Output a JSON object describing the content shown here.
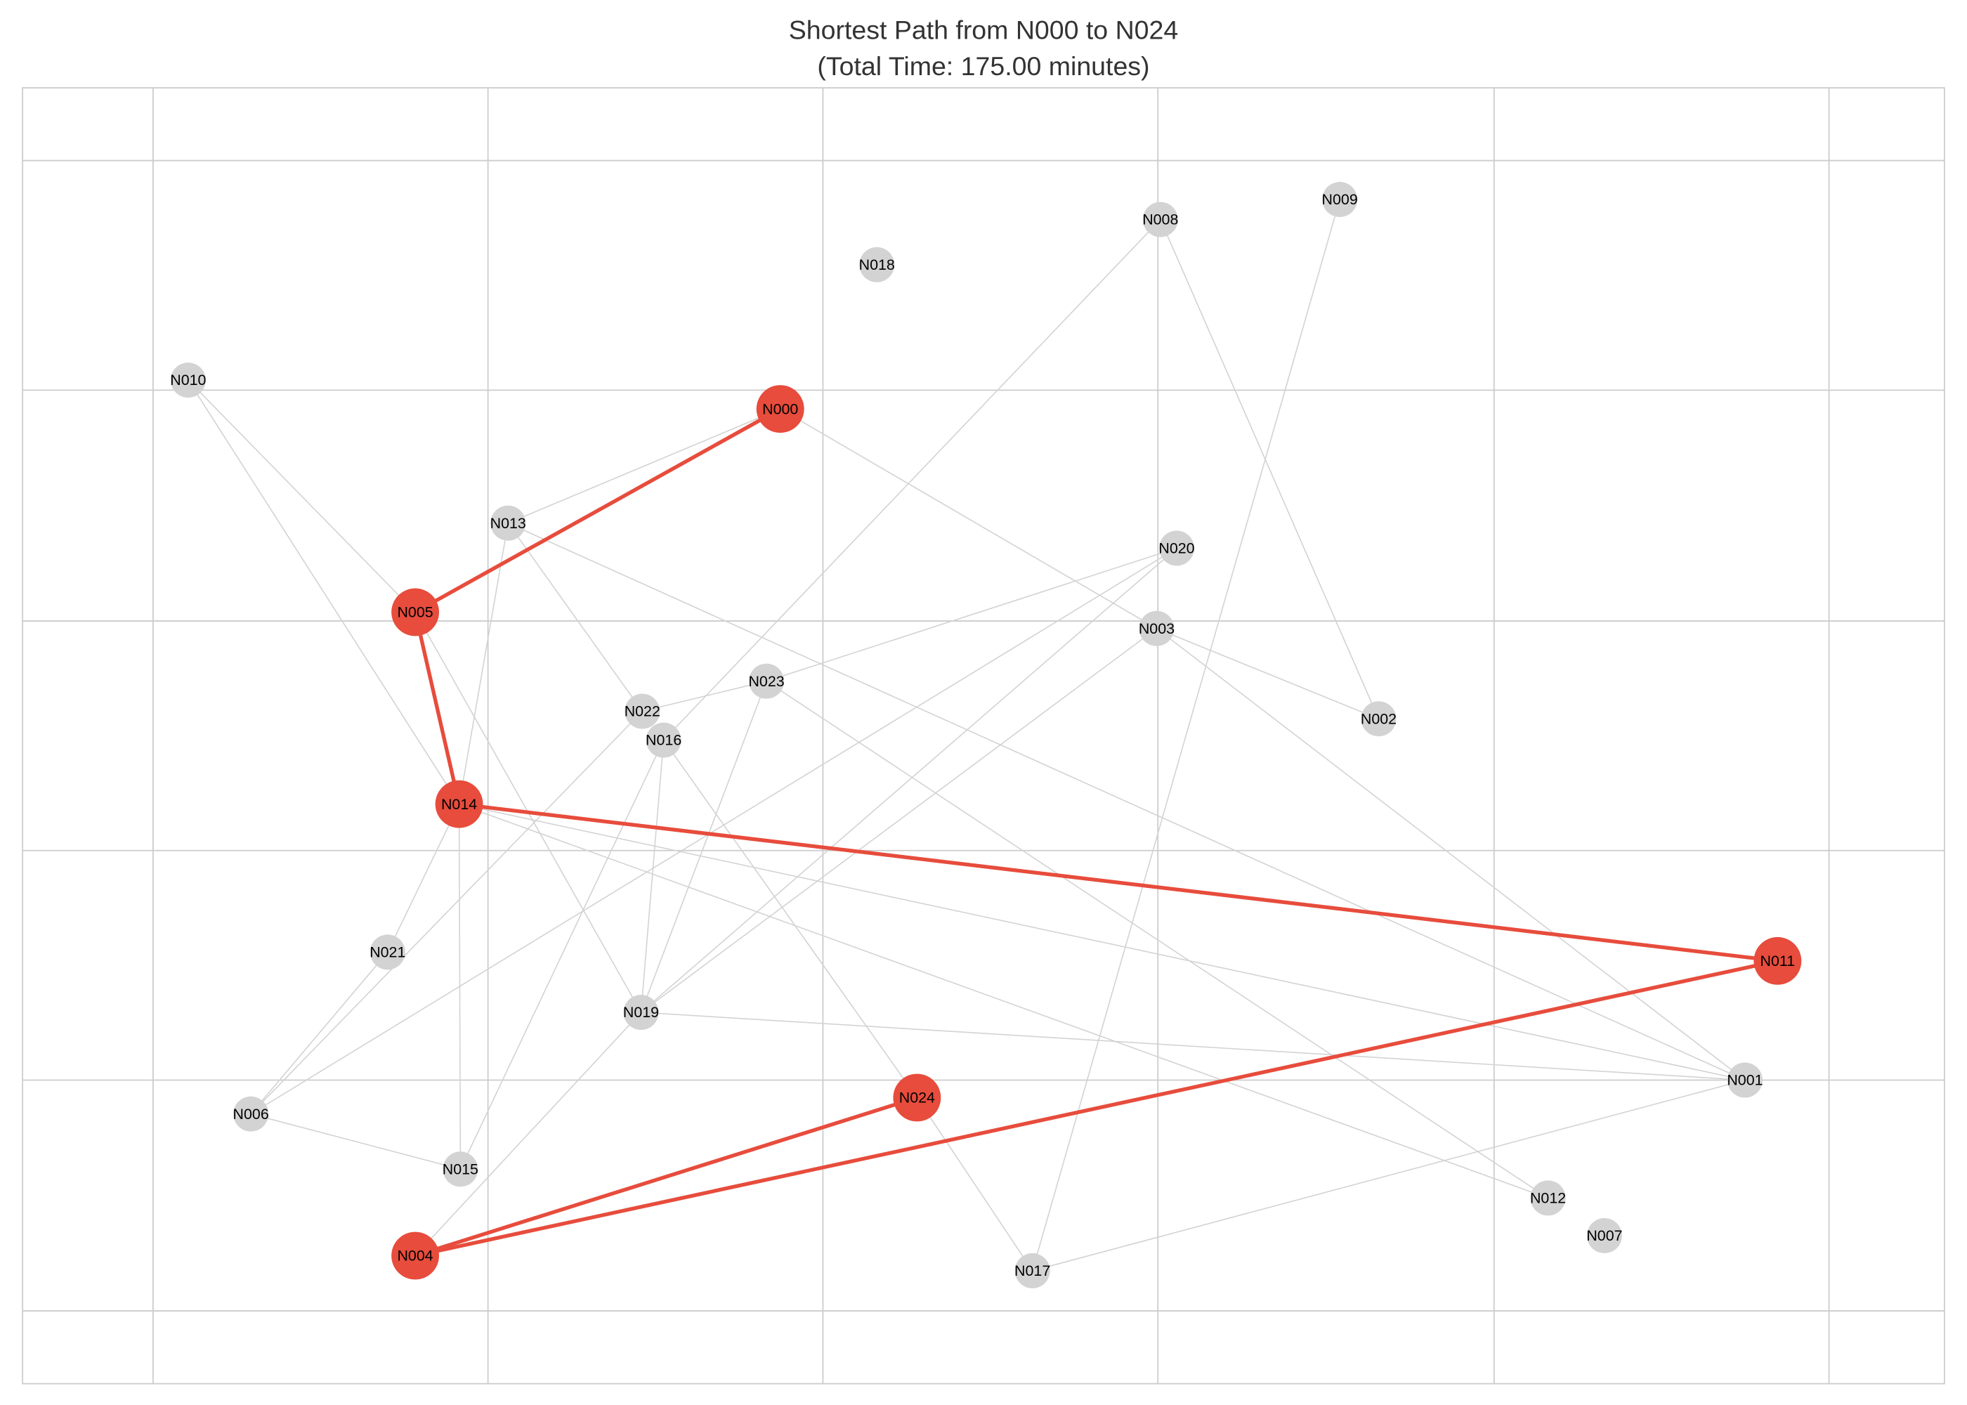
{
  "title": "Shortest Path from N000 to N024",
  "subtitle": "(Total Time: 175.00 minutes)",
  "nodes": [
    "N000",
    "N001",
    "N002",
    "N003",
    "N004",
    "N005",
    "N006",
    "N007",
    "N008",
    "N009",
    "N010",
    "N011",
    "N012",
    "N013",
    "N014",
    "N015",
    "N016",
    "N017",
    "N018",
    "N019",
    "N020",
    "N021",
    "N022",
    "N023",
    "N024"
  ]
}
